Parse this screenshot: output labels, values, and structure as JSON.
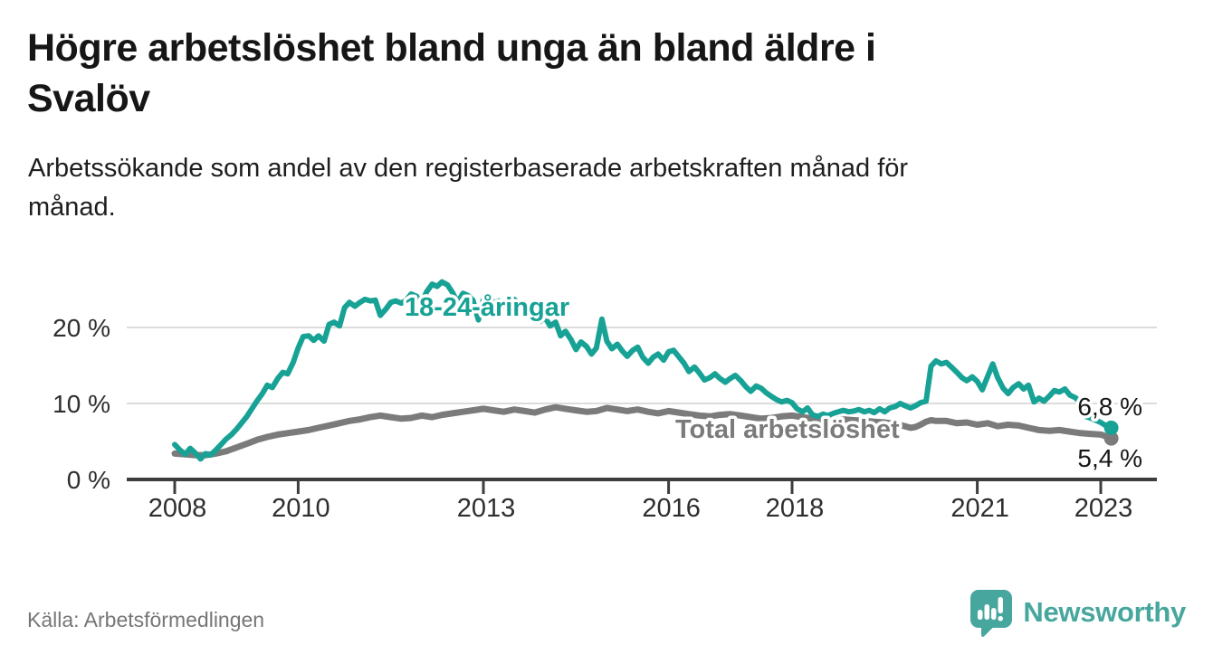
{
  "header": {
    "title": "Högre arbetslöshet bland unga än bland äldre i\nSvalöv",
    "subtitle": "Arbetssökande som andel av den registerbaserade arbetskraften månad för\nmånad."
  },
  "footer": {
    "source_label": "Källa: Arbetsförmedlingen",
    "brand": "Newsworthy",
    "brand_icon": "speech-bubble-bar-chart-icon",
    "brand_color": "#47a69e"
  },
  "colors": {
    "young_series": "#17a295",
    "total_series": "#7b7b7b",
    "gridline": "#dcdcdc",
    "axis": "#3d3d3d",
    "axis_text": "#2e2e2e",
    "end_label_text": "#161616",
    "label_halo": "#ffffff"
  },
  "chart_data": {
    "type": "line",
    "unit": "%",
    "grid": "horizontal-only",
    "x_axis": {
      "ticks": [
        2008,
        2010,
        2013,
        2016,
        2018,
        2021,
        2023
      ],
      "range": [
        2007.7,
        2023.8
      ]
    },
    "y_axis": {
      "ticks": [
        0,
        10,
        20
      ],
      "tick_labels": [
        "0 %",
        "10 %",
        "20 %"
      ],
      "range": [
        0,
        27
      ]
    },
    "series": [
      {
        "name": "18-24-åringar",
        "color": "#17a295",
        "end_value": 6.8,
        "end_label": "6,8 %",
        "points": [
          [
            2008.0,
            4.6
          ],
          [
            2008.08,
            3.9
          ],
          [
            2008.17,
            3.3
          ],
          [
            2008.25,
            4.1
          ],
          [
            2008.33,
            3.5
          ],
          [
            2008.42,
            2.7
          ],
          [
            2008.5,
            3.4
          ],
          [
            2008.58,
            3.2
          ],
          [
            2008.67,
            3.9
          ],
          [
            2008.75,
            4.6
          ],
          [
            2008.83,
            5.3
          ],
          [
            2008.92,
            5.9
          ],
          [
            2009.0,
            6.6
          ],
          [
            2009.17,
            8.3
          ],
          [
            2009.33,
            10.3
          ],
          [
            2009.42,
            11.3
          ],
          [
            2009.5,
            12.4
          ],
          [
            2009.58,
            12.1
          ],
          [
            2009.67,
            13.3
          ],
          [
            2009.75,
            14.1
          ],
          [
            2009.83,
            13.9
          ],
          [
            2009.92,
            15.4
          ],
          [
            2010.0,
            17.3
          ],
          [
            2010.08,
            18.8
          ],
          [
            2010.17,
            18.9
          ],
          [
            2010.25,
            18.3
          ],
          [
            2010.33,
            18.9
          ],
          [
            2010.42,
            18.2
          ],
          [
            2010.5,
            20.4
          ],
          [
            2010.58,
            20.7
          ],
          [
            2010.67,
            20.2
          ],
          [
            2010.75,
            22.6
          ],
          [
            2010.83,
            23.3
          ],
          [
            2010.92,
            22.8
          ],
          [
            2011.0,
            23.3
          ],
          [
            2011.08,
            23.7
          ],
          [
            2011.17,
            23.5
          ],
          [
            2011.25,
            23.6
          ],
          [
            2011.33,
            21.6
          ],
          [
            2011.42,
            22.4
          ],
          [
            2011.5,
            23.3
          ],
          [
            2011.58,
            23.5
          ],
          [
            2011.67,
            23.2
          ],
          [
            2011.75,
            23.6
          ],
          [
            2011.83,
            24.4
          ],
          [
            2011.92,
            24.1
          ],
          [
            2012.0,
            23.2
          ],
          [
            2012.08,
            24.7
          ],
          [
            2012.17,
            25.7
          ],
          [
            2012.25,
            25.4
          ],
          [
            2012.33,
            26.0
          ],
          [
            2012.42,
            25.6
          ],
          [
            2012.5,
            24.6
          ],
          [
            2012.58,
            23.3
          ],
          [
            2012.67,
            24.5
          ],
          [
            2012.75,
            24.2
          ],
          [
            2012.83,
            23.6
          ],
          [
            2012.92,
            21.0
          ],
          [
            2013.0,
            23.7
          ],
          [
            2013.08,
            24.0
          ],
          [
            2013.17,
            23.3
          ],
          [
            2013.25,
            23.5
          ],
          [
            2013.33,
            22.7
          ],
          [
            2013.42,
            23.3
          ],
          [
            2013.5,
            23.7
          ],
          [
            2013.58,
            23.1
          ],
          [
            2013.67,
            22.6
          ],
          [
            2013.75,
            22.2
          ],
          [
            2013.83,
            21.8
          ],
          [
            2013.92,
            20.8
          ],
          [
            2014.0,
            21.3
          ],
          [
            2014.08,
            20.2
          ],
          [
            2014.17,
            20.7
          ],
          [
            2014.25,
            18.9
          ],
          [
            2014.33,
            19.5
          ],
          [
            2014.42,
            18.4
          ],
          [
            2014.5,
            17.1
          ],
          [
            2014.58,
            18.1
          ],
          [
            2014.67,
            17.5
          ],
          [
            2014.75,
            16.5
          ],
          [
            2014.83,
            17.3
          ],
          [
            2014.92,
            21.1
          ],
          [
            2015.0,
            18.2
          ],
          [
            2015.08,
            17.2
          ],
          [
            2015.17,
            17.8
          ],
          [
            2015.25,
            16.9
          ],
          [
            2015.33,
            16.2
          ],
          [
            2015.42,
            17.0
          ],
          [
            2015.5,
            17.4
          ],
          [
            2015.58,
            16.1
          ],
          [
            2015.67,
            15.3
          ],
          [
            2015.75,
            16.1
          ],
          [
            2015.83,
            16.5
          ],
          [
            2015.92,
            15.7
          ],
          [
            2016.0,
            16.8
          ],
          [
            2016.08,
            17.0
          ],
          [
            2016.17,
            16.1
          ],
          [
            2016.25,
            15.3
          ],
          [
            2016.33,
            14.2
          ],
          [
            2016.42,
            14.8
          ],
          [
            2016.5,
            14.0
          ],
          [
            2016.58,
            13.1
          ],
          [
            2016.67,
            13.4
          ],
          [
            2016.75,
            13.9
          ],
          [
            2016.83,
            13.3
          ],
          [
            2016.92,
            12.8
          ],
          [
            2017.0,
            13.3
          ],
          [
            2017.08,
            13.7
          ],
          [
            2017.17,
            13.0
          ],
          [
            2017.25,
            12.2
          ],
          [
            2017.33,
            11.6
          ],
          [
            2017.42,
            12.3
          ],
          [
            2017.5,
            12.0
          ],
          [
            2017.58,
            11.4
          ],
          [
            2017.67,
            10.9
          ],
          [
            2017.75,
            10.5
          ],
          [
            2017.83,
            10.2
          ],
          [
            2017.92,
            10.4
          ],
          [
            2018.0,
            10.1
          ],
          [
            2018.08,
            9.3
          ],
          [
            2018.17,
            8.9
          ],
          [
            2018.25,
            9.4
          ],
          [
            2018.33,
            8.5
          ],
          [
            2018.42,
            8.3
          ],
          [
            2018.5,
            8.6
          ],
          [
            2018.58,
            8.4
          ],
          [
            2018.67,
            8.7
          ],
          [
            2018.75,
            8.9
          ],
          [
            2018.83,
            9.1
          ],
          [
            2018.92,
            8.9
          ],
          [
            2019.0,
            9.0
          ],
          [
            2019.08,
            9.2
          ],
          [
            2019.17,
            8.9
          ],
          [
            2019.25,
            9.1
          ],
          [
            2019.33,
            8.8
          ],
          [
            2019.42,
            9.3
          ],
          [
            2019.5,
            8.9
          ],
          [
            2019.58,
            9.4
          ],
          [
            2019.67,
            9.6
          ],
          [
            2019.75,
            10.0
          ],
          [
            2019.83,
            9.7
          ],
          [
            2019.92,
            9.4
          ],
          [
            2020.0,
            9.7
          ],
          [
            2020.08,
            10.1
          ],
          [
            2020.17,
            10.3
          ],
          [
            2020.25,
            14.9
          ],
          [
            2020.33,
            15.6
          ],
          [
            2020.42,
            15.2
          ],
          [
            2020.5,
            15.4
          ],
          [
            2020.58,
            14.8
          ],
          [
            2020.67,
            14.1
          ],
          [
            2020.75,
            13.4
          ],
          [
            2020.83,
            13.0
          ],
          [
            2020.92,
            13.5
          ],
          [
            2021.0,
            12.9
          ],
          [
            2021.08,
            11.8
          ],
          [
            2021.17,
            13.6
          ],
          [
            2021.25,
            15.2
          ],
          [
            2021.33,
            13.4
          ],
          [
            2021.42,
            12.0
          ],
          [
            2021.5,
            11.3
          ],
          [
            2021.58,
            12.1
          ],
          [
            2021.67,
            12.6
          ],
          [
            2021.75,
            11.9
          ],
          [
            2021.83,
            12.4
          ],
          [
            2021.92,
            10.2
          ],
          [
            2022.0,
            10.7
          ],
          [
            2022.08,
            10.3
          ],
          [
            2022.17,
            11.0
          ],
          [
            2022.25,
            11.7
          ],
          [
            2022.33,
            11.5
          ],
          [
            2022.42,
            11.9
          ],
          [
            2022.5,
            11.1
          ],
          [
            2022.58,
            10.8
          ],
          [
            2022.67,
            10.2
          ],
          [
            2022.75,
            8.3
          ],
          [
            2022.83,
            8.1
          ],
          [
            2022.92,
            7.8
          ],
          [
            2023.0,
            7.5
          ],
          [
            2023.08,
            7.1
          ],
          [
            2023.17,
            6.8
          ]
        ]
      },
      {
        "name": "Total arbetslöshet",
        "color": "#7b7b7b",
        "end_value": 5.4,
        "end_label": "5,4 %",
        "points": [
          [
            2008.0,
            3.4
          ],
          [
            2008.17,
            3.3
          ],
          [
            2008.33,
            3.2
          ],
          [
            2008.5,
            3.2
          ],
          [
            2008.67,
            3.4
          ],
          [
            2008.83,
            3.7
          ],
          [
            2009.0,
            4.2
          ],
          [
            2009.17,
            4.7
          ],
          [
            2009.33,
            5.2
          ],
          [
            2009.5,
            5.6
          ],
          [
            2009.67,
            5.9
          ],
          [
            2009.83,
            6.1
          ],
          [
            2010.0,
            6.3
          ],
          [
            2010.17,
            6.5
          ],
          [
            2010.33,
            6.8
          ],
          [
            2010.5,
            7.1
          ],
          [
            2010.67,
            7.4
          ],
          [
            2010.83,
            7.7
          ],
          [
            2011.0,
            7.9
          ],
          [
            2011.17,
            8.2
          ],
          [
            2011.33,
            8.4
          ],
          [
            2011.5,
            8.2
          ],
          [
            2011.67,
            8.0
          ],
          [
            2011.83,
            8.1
          ],
          [
            2012.0,
            8.4
          ],
          [
            2012.17,
            8.2
          ],
          [
            2012.33,
            8.5
          ],
          [
            2012.5,
            8.7
          ],
          [
            2012.67,
            8.9
          ],
          [
            2012.83,
            9.1
          ],
          [
            2013.0,
            9.3
          ],
          [
            2013.17,
            9.1
          ],
          [
            2013.33,
            8.9
          ],
          [
            2013.5,
            9.2
          ],
          [
            2013.67,
            9.0
          ],
          [
            2013.83,
            8.8
          ],
          [
            2014.0,
            9.2
          ],
          [
            2014.17,
            9.5
          ],
          [
            2014.33,
            9.3
          ],
          [
            2014.5,
            9.1
          ],
          [
            2014.67,
            8.9
          ],
          [
            2014.83,
            9.0
          ],
          [
            2015.0,
            9.4
          ],
          [
            2015.17,
            9.2
          ],
          [
            2015.33,
            9.0
          ],
          [
            2015.5,
            9.2
          ],
          [
            2015.67,
            8.9
          ],
          [
            2015.83,
            8.7
          ],
          [
            2016.0,
            9.0
          ],
          [
            2016.17,
            8.8
          ],
          [
            2016.33,
            8.6
          ],
          [
            2016.5,
            8.4
          ],
          [
            2016.67,
            8.3
          ],
          [
            2016.83,
            8.5
          ],
          [
            2017.0,
            8.6
          ],
          [
            2017.17,
            8.4
          ],
          [
            2017.33,
            8.2
          ],
          [
            2017.5,
            8.0
          ],
          [
            2017.67,
            8.1
          ],
          [
            2017.83,
            8.3
          ],
          [
            2018.0,
            8.4
          ],
          [
            2018.17,
            8.2
          ],
          [
            2018.33,
            8.0
          ],
          [
            2018.5,
            7.9
          ],
          [
            2018.67,
            7.8
          ],
          [
            2018.83,
            7.9
          ],
          [
            2019.0,
            7.8
          ],
          [
            2019.17,
            7.7
          ],
          [
            2019.33,
            7.6
          ],
          [
            2019.5,
            7.5
          ],
          [
            2019.67,
            7.3
          ],
          [
            2019.83,
            7.0
          ],
          [
            2019.92,
            6.8
          ],
          [
            2020.0,
            6.9
          ],
          [
            2020.08,
            7.2
          ],
          [
            2020.17,
            7.6
          ],
          [
            2020.25,
            7.8
          ],
          [
            2020.33,
            7.7
          ],
          [
            2020.5,
            7.7
          ],
          [
            2020.67,
            7.4
          ],
          [
            2020.83,
            7.5
          ],
          [
            2021.0,
            7.2
          ],
          [
            2021.17,
            7.4
          ],
          [
            2021.33,
            7.0
          ],
          [
            2021.5,
            7.2
          ],
          [
            2021.67,
            7.1
          ],
          [
            2021.83,
            6.8
          ],
          [
            2022.0,
            6.5
          ],
          [
            2022.17,
            6.4
          ],
          [
            2022.33,
            6.5
          ],
          [
            2022.5,
            6.3
          ],
          [
            2022.67,
            6.1
          ],
          [
            2022.83,
            6.0
          ],
          [
            2023.0,
            5.9
          ],
          [
            2023.08,
            5.7
          ],
          [
            2023.17,
            5.4
          ]
        ]
      }
    ]
  }
}
